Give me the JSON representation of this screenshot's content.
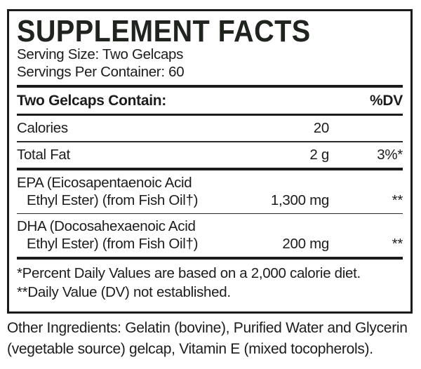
{
  "colors": {
    "ink": "#1c1c1c",
    "title_ink": "#20241f",
    "background": "#ffffff"
  },
  "label": {
    "title": "SUPPLEMENT FACTS",
    "serving_size": "Serving Size: Two Gelcaps",
    "servings_per_container": "Servings Per Container: 60",
    "header": {
      "left": "Two Gelcaps Contain:",
      "right": "%DV"
    },
    "rows": [
      {
        "name": "Calories",
        "amount": "20",
        "dv": ""
      },
      {
        "name": "Total Fat",
        "amount": "2 g",
        "dv": "3%*"
      },
      {
        "name_line1": "EPA (Eicosapentaenoic Acid",
        "name_line2": "Ethyl Ester) (from Fish Oil†)",
        "amount": "1,300 mg",
        "dv": "**"
      },
      {
        "name_line1": "DHA (Docosahexaenoic Acid",
        "name_line2": "Ethyl Ester) (from Fish Oil†)",
        "amount": "200 mg",
        "dv": "**"
      }
    ],
    "footnotes": [
      "*Percent Daily Values are based on a 2,000 calorie diet.",
      "**Daily Value (DV) not established."
    ],
    "other_ingredients": "Other Ingredients: Gelatin (bovine), Purified Water and Glycerin (vegetable source) gelcap, Vitamin E (mixed tocopherols)."
  }
}
